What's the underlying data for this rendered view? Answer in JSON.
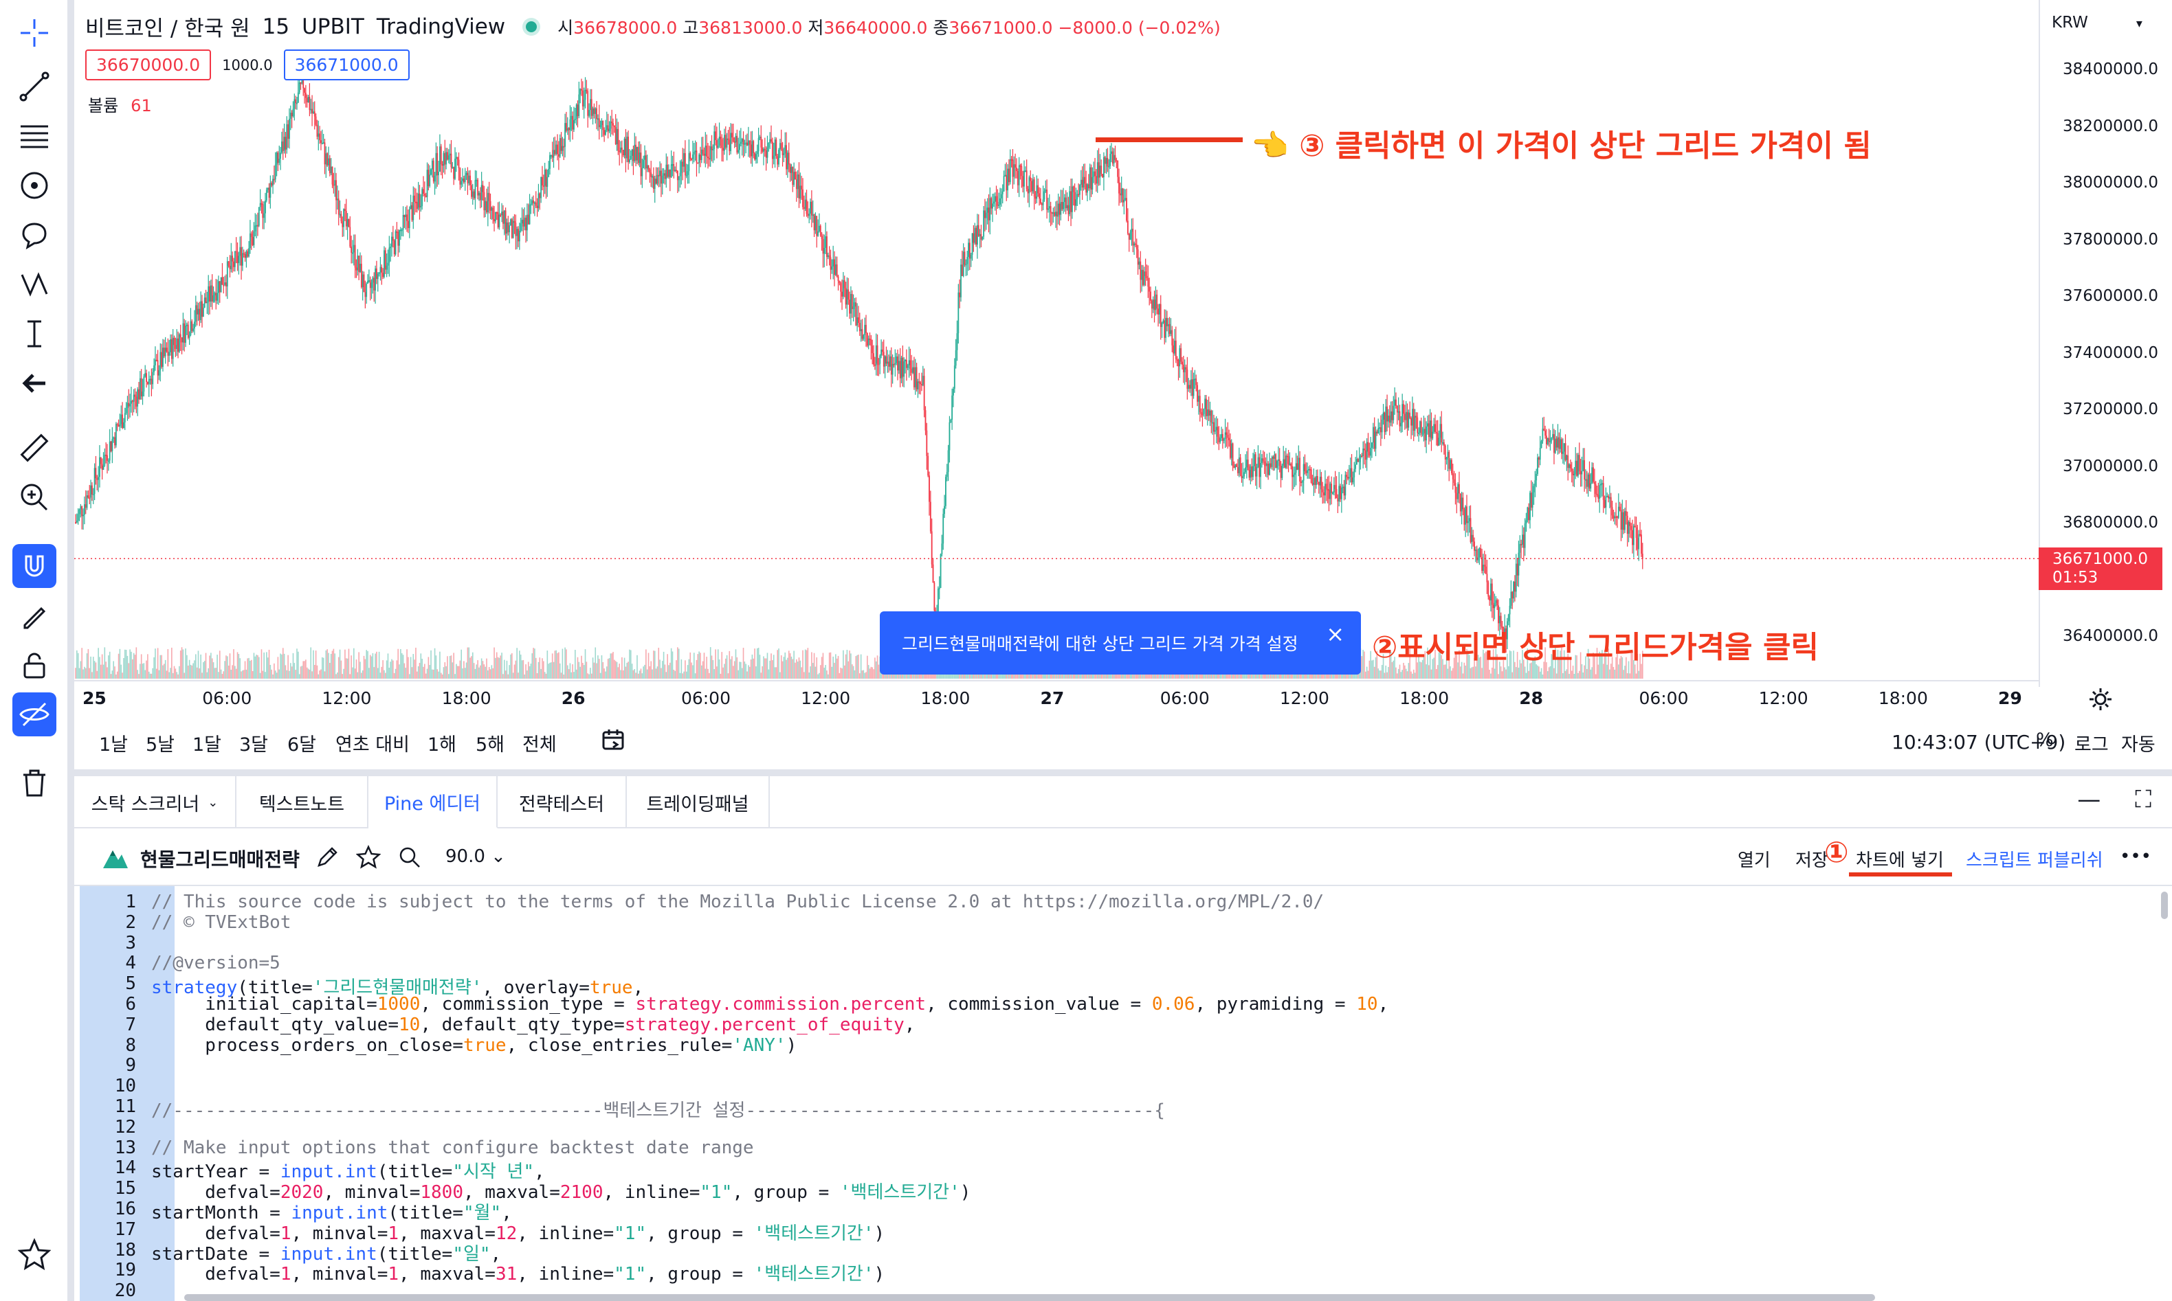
{
  "header": {
    "symbol": "비트코인 / 한국 원",
    "interval": "15",
    "exchange": "UPBIT",
    "source": "TradingView",
    "o_key": "시",
    "o_val": "36678000.0",
    "h_key": "고",
    "h_val": "36813000.0",
    "l_key": "저",
    "l_val": "36640000.0",
    "c_key": "종",
    "c_val": "36671000.0",
    "change": "−8000.0 (−0.02%)",
    "bid": "36670000.0",
    "spread": "1000.0",
    "ask": "36671000.0",
    "volume_label": "볼륨",
    "volume_value": "61"
  },
  "currency": "KRW",
  "price_axis": [
    "38400000.0",
    "38200000.0",
    "38000000.0",
    "37800000.0",
    "37600000.0",
    "37400000.0",
    "37200000.0",
    "37000000.0",
    "36800000.0",
    "36600000.0",
    "36400000.0"
  ],
  "last_price": {
    "price": "36671000.0",
    "countdown": "01:53"
  },
  "time_axis": [
    {
      "label": "25",
      "bold": true
    },
    {
      "label": "06:00",
      "bold": false
    },
    {
      "label": "12:00",
      "bold": false
    },
    {
      "label": "18:00",
      "bold": false
    },
    {
      "label": "26",
      "bold": true
    },
    {
      "label": "06:00",
      "bold": false
    },
    {
      "label": "12:00",
      "bold": false
    },
    {
      "label": "18:00",
      "bold": false
    },
    {
      "label": "27",
      "bold": true
    },
    {
      "label": "06:00",
      "bold": false
    },
    {
      "label": "12:00",
      "bold": false
    },
    {
      "label": "18:00",
      "bold": false
    },
    {
      "label": "28",
      "bold": true
    },
    {
      "label": "06:00",
      "bold": false
    },
    {
      "label": "12:00",
      "bold": false
    },
    {
      "label": "18:00",
      "bold": false
    },
    {
      "label": "29",
      "bold": true
    }
  ],
  "annotations": {
    "step3": "👈 ③ 클릭하면 이 가격이 상단 그리드 가격이 됨",
    "step2": "②표시되면 상단 그리드가격을 클릭",
    "step1": "①"
  },
  "tooltip": {
    "text": "그리드현물매매전략에 대한 상단 그리드 가격 가격 설정",
    "close": "×"
  },
  "ranges": [
    "1날",
    "5날",
    "1달",
    "3달",
    "6달",
    "연초 대비",
    "1해",
    "5해",
    "전체"
  ],
  "clock": "10:43:07 (UTC+9)",
  "axis_options": {
    "percent": "%",
    "log": "로그",
    "auto": "자동"
  },
  "bottom_tabs": [
    "스탁 스크리너",
    "텍스트노트",
    "Pine 에디터",
    "전략테스터",
    "트레이딩패널"
  ],
  "active_tab": "Pine 에디터",
  "editor": {
    "script_name": "현물그리드매매전략",
    "zoom": "90.0",
    "open": "열기",
    "save": "저장",
    "add_to_chart": "차트에 넣기",
    "publish": "스크립트 퍼블리쉬",
    "more": "•••"
  },
  "colors": {
    "up": "#22ab94",
    "down": "#f23645",
    "accent": "#2962ff",
    "annotation": "#f23a1e"
  }
}
